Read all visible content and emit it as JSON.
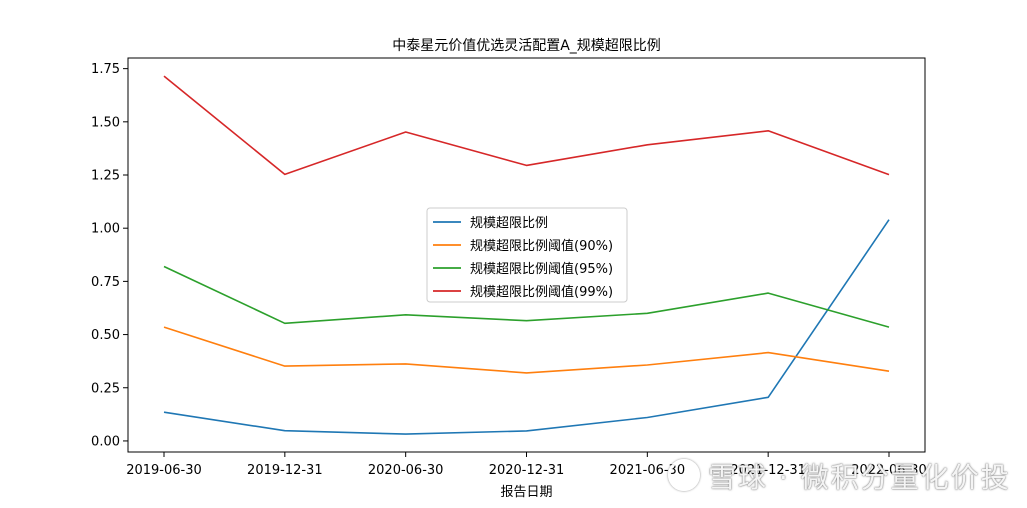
{
  "chart_data": {
    "type": "line",
    "title": "中泰星元价值优选灵活配置A_规模超限比例",
    "xlabel": "报告日期",
    "ylabel": "",
    "categories": [
      "2019-06-30",
      "2019-12-31",
      "2020-06-30",
      "2020-12-31",
      "2021-06-30",
      "2021-12-31",
      "2022-06-30"
    ],
    "ylim": [
      -0.052,
      1.8
    ],
    "yticks": [
      0.0,
      0.25,
      0.5,
      0.75,
      1.0,
      1.25,
      1.5,
      1.75
    ],
    "ytick_labels": [
      "0.00",
      "0.25",
      "0.50",
      "0.75",
      "1.00",
      "1.25",
      "1.50",
      "1.75"
    ],
    "grid": false,
    "legend_position": "center",
    "series": [
      {
        "name": "规模超限比例",
        "color": "#1f77b4",
        "values": [
          0.135,
          0.048,
          0.032,
          0.047,
          0.11,
          0.205,
          1.04
        ]
      },
      {
        "name": "规模超限比例阈值(90%)",
        "color": "#ff7f0e",
        "values": [
          0.535,
          0.352,
          0.362,
          0.32,
          0.357,
          0.415,
          0.328
        ]
      },
      {
        "name": "规模超限比例阈值(95%)",
        "color": "#2ca02c",
        "values": [
          0.82,
          0.553,
          0.593,
          0.565,
          0.6,
          0.695,
          0.535
        ]
      },
      {
        "name": "规模超限比例阈值(99%)",
        "color": "#d62728",
        "values": [
          1.715,
          1.253,
          1.452,
          1.295,
          1.392,
          1.458,
          1.252
        ]
      }
    ]
  },
  "watermark": {
    "text": "雪球 · 微积分量化价投"
  }
}
